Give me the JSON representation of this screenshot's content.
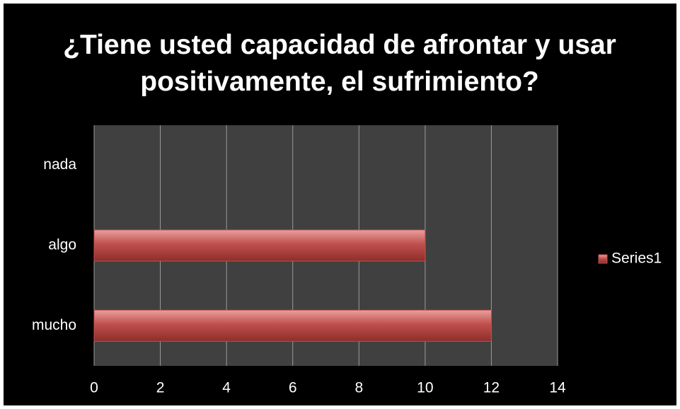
{
  "chart_data": {
    "type": "bar",
    "orientation": "horizontal",
    "title": "¿Tiene usted capacidad de afrontar y usar positivamente, el sufrimiento?",
    "categories": [
      "nada",
      "algo",
      "mucho"
    ],
    "series": [
      {
        "name": "Series1",
        "color": "#c0504d",
        "values": [
          0,
          10,
          12
        ]
      }
    ],
    "xlim": [
      0,
      14
    ],
    "xticks": [
      0,
      2,
      4,
      6,
      8,
      10,
      12,
      14
    ],
    "grid": true,
    "legend": "right"
  }
}
